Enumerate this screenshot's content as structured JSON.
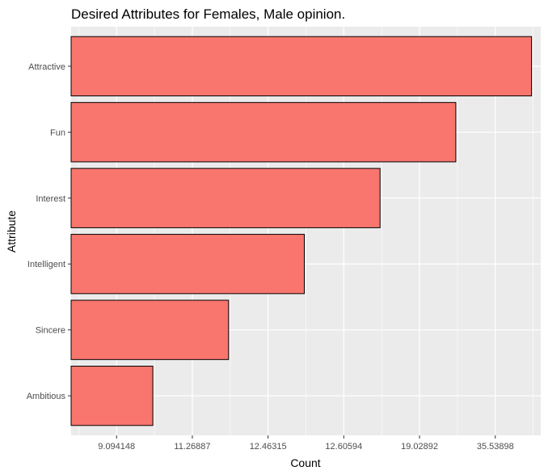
{
  "chart_data": {
    "type": "bar",
    "orientation": "horizontal",
    "title": "Desired Attributes for Females, Male opinion.",
    "xlabel": "Count",
    "ylabel": "Attribute",
    "categories": [
      "Attractive",
      "Fun",
      "Interest",
      "Intelligent",
      "Sincere",
      "Ambitious"
    ],
    "values": [
      35.53898,
      19.02892,
      12.60594,
      12.46315,
      11.26887,
      9.094148
    ],
    "x_tick_labels": [
      "9.094148",
      "11.26887",
      "12.46315",
      "12.60594",
      "19.02892",
      "35.53898"
    ],
    "grid": true,
    "colors": {
      "bar_fill": "#F8766D",
      "bar_stroke": "#000000",
      "panel_background": "#EBEBEB",
      "grid_line": "#FFFFFF",
      "tick_mark": "#333333"
    }
  }
}
